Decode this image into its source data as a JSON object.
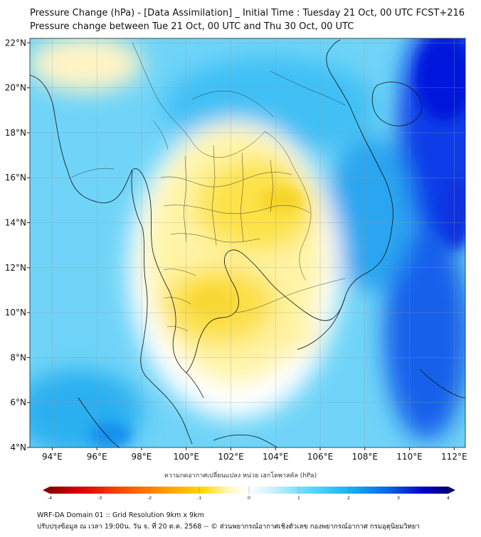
{
  "title": {
    "line1": "Pressure Change (hPa) - [Data Assimilation] _ Initial Time : Tuesday 21 Oct, 00 UTC FCST+216",
    "line2": "Pressure change between Tue 21 Oct, 00 UTC and Thu 30 Oct, 00 UTC"
  },
  "axes": {
    "x_ticks": [
      "94°E",
      "96°E",
      "98°E",
      "100°E",
      "102°E",
      "104°E",
      "106°E",
      "108°E",
      "110°E",
      "112°E"
    ],
    "x_values": [
      94,
      96,
      98,
      100,
      102,
      104,
      106,
      108,
      110,
      112
    ],
    "y_ticks": [
      "22°N",
      "20°N",
      "18°N",
      "16°N",
      "14°N",
      "12°N",
      "10°N",
      "8°N",
      "6°N",
      "4°N"
    ],
    "y_values": [
      22,
      20,
      18,
      16,
      14,
      12,
      10,
      8,
      6,
      4
    ],
    "lon_range": [
      93,
      112.5
    ],
    "lat_range": [
      4,
      22.2
    ]
  },
  "colorbar": {
    "label": "ความกดอากาศเปลี่ยนแปลง หน่วย เฮกโตพาสคัล (hPa)",
    "ticks": [
      "-4",
      "-3",
      "-2",
      "-1",
      "0",
      "1",
      "2",
      "3",
      "4"
    ],
    "values": [
      -4,
      -3,
      -2,
      -1,
      0,
      1,
      2,
      3,
      4
    ],
    "colors": [
      "#8b0000",
      "#e00000",
      "#ff5a00",
      "#ffa500",
      "#ffd700",
      "#ffee66",
      "#fff8c0",
      "#ffffff",
      "#c8f0ff",
      "#5fd8ff",
      "#19b4f0",
      "#0a64e6",
      "#0000c8",
      "#00006e"
    ]
  },
  "map_fields": {
    "colors": {
      "high_dark": "#0010e0",
      "high_mid": "#1a9af0",
      "high_light": "#5fd2fa",
      "near_zero": "#ffffff",
      "low_light": "#fff5a0",
      "low_mid": "#fde64a",
      "low_strong": "#f6d62a"
    }
  },
  "footer": {
    "line1": "WRF-DA Domain 01 :: Grid Resolution 9km x 9km",
    "line2": "ปรับปรุงข้อมูล ณ เวลา 19:00น. วัน จ. ที่ 20 ต.ค. 2568 -- © ส่วนพยากรณ์อากาศเชิงตัวเลข กองพยากรณ์อากาศ กรมอุตุนิยมวิทยา"
  }
}
